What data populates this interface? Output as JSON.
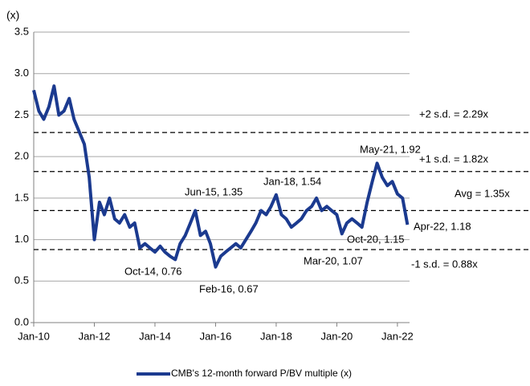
{
  "chart_data": {
    "type": "line",
    "y_unit_label": "(x)",
    "x": [
      2010.0,
      2010.17,
      2010.33,
      2010.5,
      2010.67,
      2010.83,
      2011.0,
      2011.17,
      2011.33,
      2011.5,
      2011.67,
      2011.83,
      2012.0,
      2012.17,
      2012.33,
      2012.5,
      2012.67,
      2012.83,
      2013.0,
      2013.17,
      2013.33,
      2013.5,
      2013.67,
      2013.83,
      2014.0,
      2014.17,
      2014.33,
      2014.5,
      2014.67,
      2014.83,
      2015.0,
      2015.17,
      2015.33,
      2015.5,
      2015.67,
      2015.83,
      2016.0,
      2016.17,
      2016.33,
      2016.5,
      2016.67,
      2016.83,
      2017.0,
      2017.17,
      2017.33,
      2017.5,
      2017.67,
      2017.83,
      2018.0,
      2018.17,
      2018.33,
      2018.5,
      2018.67,
      2018.83,
      2019.0,
      2019.17,
      2019.33,
      2019.5,
      2019.67,
      2019.83,
      2020.0,
      2020.17,
      2020.33,
      2020.5,
      2020.67,
      2020.83,
      2021.0,
      2021.17,
      2021.33,
      2021.5,
      2021.67,
      2021.83,
      2022.0,
      2022.17,
      2022.33
    ],
    "series": [
      {
        "name": "CMB's 12-month forward P/BV multiple (x)",
        "color": "#1b3a8f",
        "values": [
          2.8,
          2.55,
          2.45,
          2.6,
          2.85,
          2.5,
          2.55,
          2.7,
          2.45,
          2.3,
          2.15,
          1.75,
          1.0,
          1.45,
          1.3,
          1.5,
          1.25,
          1.2,
          1.3,
          1.15,
          1.2,
          0.9,
          0.95,
          0.9,
          0.85,
          0.92,
          0.85,
          0.8,
          0.76,
          0.95,
          1.05,
          1.2,
          1.35,
          1.05,
          1.1,
          0.95,
          0.67,
          0.8,
          0.85,
          0.9,
          0.95,
          0.9,
          1.0,
          1.1,
          1.2,
          1.35,
          1.3,
          1.4,
          1.54,
          1.3,
          1.25,
          1.15,
          1.2,
          1.25,
          1.35,
          1.4,
          1.5,
          1.35,
          1.4,
          1.35,
          1.3,
          1.07,
          1.2,
          1.25,
          1.2,
          1.15,
          1.45,
          1.7,
          1.92,
          1.75,
          1.65,
          1.7,
          1.55,
          1.5,
          1.18
        ]
      }
    ],
    "xlim": [
      2010,
      2022.4
    ],
    "xticks": [
      {
        "value": 2010,
        "label": "Jan-10"
      },
      {
        "value": 2012,
        "label": "Jan-12"
      },
      {
        "value": 2014,
        "label": "Jan-14"
      },
      {
        "value": 2016,
        "label": "Jan-16"
      },
      {
        "value": 2018,
        "label": "Jan-18"
      },
      {
        "value": 2020,
        "label": "Jan-20"
      },
      {
        "value": 2022,
        "label": "Jan-22"
      }
    ],
    "ylim": [
      0,
      3.5
    ],
    "yticks": [
      {
        "value": 0,
        "label": "0.0"
      },
      0.5,
      {
        "value": 1,
        "label": "1.0"
      },
      1.5,
      {
        "value": 2,
        "label": "2.0"
      },
      2.5,
      {
        "value": 3,
        "label": "3.0"
      },
      3.5
    ],
    "grid": true,
    "reference_lines": [
      {
        "value": 2.29,
        "label": "+2 s.d. = 2.29x"
      },
      {
        "value": 1.82,
        "label": "+1 s.d. = 1.82x"
      },
      {
        "value": 1.35,
        "label": "Avg = 1.35x"
      },
      {
        "value": 0.88,
        "label": "-1 s.d. = 0.88x"
      }
    ],
    "annotations": [
      "May-21, 1.92",
      "Jan-18, 1.54",
      "Jun-15, 1.35",
      "Apr-22, 1.18",
      "Oct-20, 1.15",
      "Mar-20, 1.07",
      "Oct-14, 0.76",
      "Feb-16, 0.67"
    ],
    "legend": "bottom"
  }
}
